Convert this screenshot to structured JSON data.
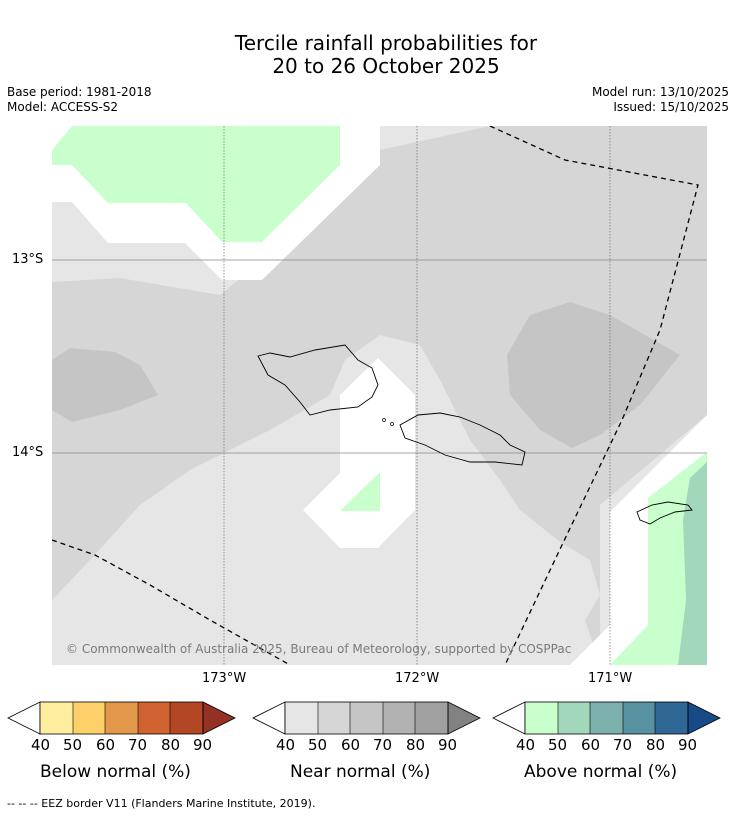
{
  "title_line1": "Tercile rainfall probabilities for",
  "title_line2": "20 to 26 October 2025",
  "base_period": "Base period: 1981-2018",
  "model": "Model: ACCESS-S2",
  "model_run": "Model run: 13/10/2025",
  "issued": "Issued: 15/10/2025",
  "latitudes": [
    "13°S",
    "14°S"
  ],
  "longitudes": [
    "173°W",
    "172°W",
    "171°W"
  ],
  "copyright": "© Commonwealth of Australia 2025, Bureau of Meteorology, supported by COSPPac",
  "colorbars": [
    {
      "label": "Below normal (%)",
      "ticks": [
        "40",
        "50",
        "60",
        "70",
        "80",
        "90"
      ],
      "colors": [
        "#ffeda0",
        "#fed06a",
        "#e3974a",
        "#d06231",
        "#b34725",
        "#943126"
      ]
    },
    {
      "label": "Near normal (%)",
      "ticks": [
        "40",
        "50",
        "60",
        "70",
        "80",
        "90"
      ],
      "colors": [
        "#e6e6e6",
        "#d6d6d6",
        "#c5c5c5",
        "#b2b2b2",
        "#a0a0a0",
        "#828282"
      ]
    },
    {
      "label": "Above normal (%)",
      "ticks": [
        "40",
        "50",
        "60",
        "70",
        "80",
        "90"
      ],
      "colors": [
        "#c9ffcc",
        "#a3d7bc",
        "#7bb0ad",
        "#5892a0",
        "#2f6795",
        "#164b88"
      ]
    }
  ],
  "footnote": "-- -- -- EEZ border V11 (Flanders Marine Institute, 2019)."
}
